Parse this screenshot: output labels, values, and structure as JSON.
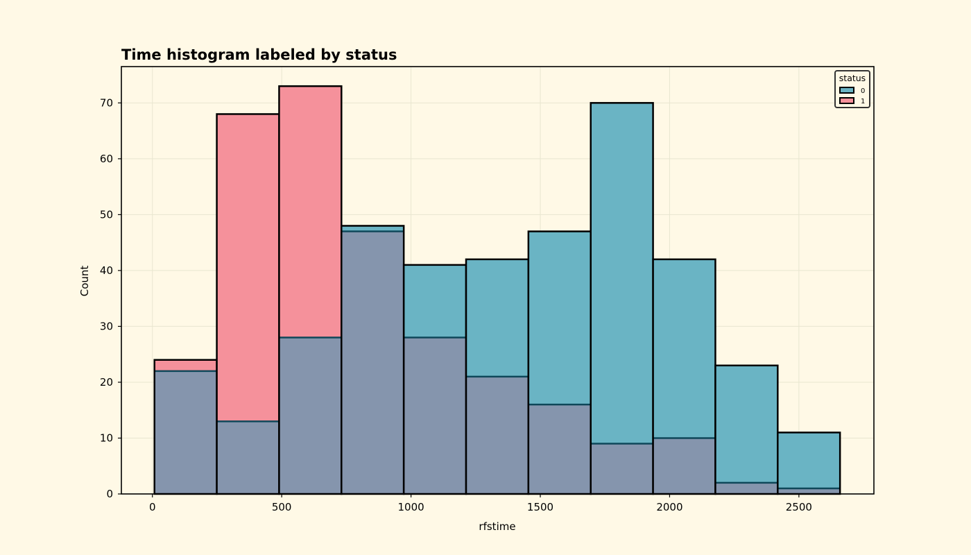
{
  "colors": {
    "background": "#fff9e6",
    "series0": "#6ab4c4",
    "series1": "#f5919b",
    "overlap": "#8595ad",
    "edge": "#000000",
    "overlap_edge": "#0e4759",
    "grid": "#e8e6d0"
  },
  "chart_data": {
    "type": "bar",
    "title": "Time histogram labeled by status",
    "xlabel": "rfstime",
    "ylabel": "Count",
    "xlim": [
      -120,
      2790
    ],
    "ylim": [
      0,
      76.5
    ],
    "xticks": [
      0,
      500,
      1000,
      1500,
      2000,
      2500
    ],
    "yticks": [
      0,
      10,
      20,
      30,
      40,
      50,
      60,
      70
    ],
    "grid": true,
    "legend": {
      "title": "status",
      "placement": "top-right"
    },
    "bin_edges": [
      8,
      249,
      490,
      731,
      972,
      1213,
      1454,
      1695,
      1936,
      2177,
      2418,
      2659
    ],
    "series": [
      {
        "name": "0",
        "values": [
          22,
          13,
          28,
          48,
          41,
          42,
          47,
          70,
          42,
          23,
          11
        ]
      },
      {
        "name": "1",
        "values": [
          24,
          68,
          73,
          47,
          28,
          21,
          16,
          9,
          10,
          2,
          1
        ]
      }
    ]
  }
}
